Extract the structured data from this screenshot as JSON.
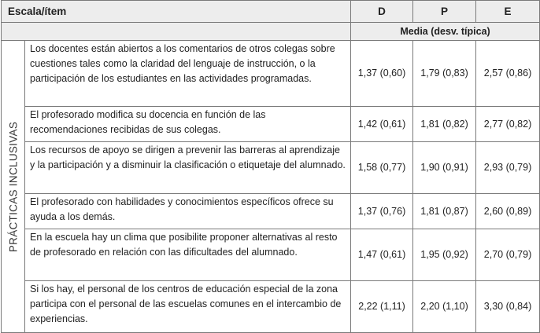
{
  "header": {
    "scale_label": "Escala/ítem",
    "columns": [
      "D",
      "P",
      "E"
    ],
    "subheader": "Media (desv. típica)"
  },
  "section_label": "PRÁCTICAS INCLUSIVAS",
  "rows": [
    {
      "text": "Los docentes están abiertos a los comentarios de otros colegas sobre cuestiones tales como la claridad del lenguaje de instrucción, o la participación de los estudiantes en las actividades programadas.",
      "values": [
        "1,37 (0,60)",
        "1,79 (0,83)",
        "2,57 (0,86)"
      ]
    },
    {
      "text": "El profesorado modifica su docencia en función de las recomendaciones recibidas de sus colegas.",
      "values": [
        "1,42 (0,61)",
        "1,81 (0,82)",
        "2,77 (0,82)"
      ]
    },
    {
      "text": "Los recursos de apoyo se dirigen a prevenir las barreras al aprendizaje y la participación y a disminuir la clasificación o etiquetaje del alumnado.",
      "values": [
        "1,58 (0,77)",
        "1,90 (0,91)",
        "2,93 (0,79)"
      ]
    },
    {
      "text": "El profesorado con habilidades y conocimientos específicos ofrece su ayuda a los demás.",
      "values": [
        "1,37 (0,76)",
        "1,81 (0,87)",
        "2,60 (0,89)"
      ]
    },
    {
      "text": "En la escuela hay un clima que posibilite proponer alternativas al resto de profesorado en relación con las dificultades del alumnado.",
      "values": [
        "1,47 (0,61)",
        "1,95 (0,92)",
        "2,70 (0,79)"
      ]
    },
    {
      "text": "Si los hay, el personal de los centros de educación especial de la zona participa con el personal de las escuelas comunes en el intercambio de experiencias.",
      "values": [
        "2,22 (1,11)",
        "2,20 (1,10)",
        "3,30 (0,84)"
      ]
    }
  ]
}
